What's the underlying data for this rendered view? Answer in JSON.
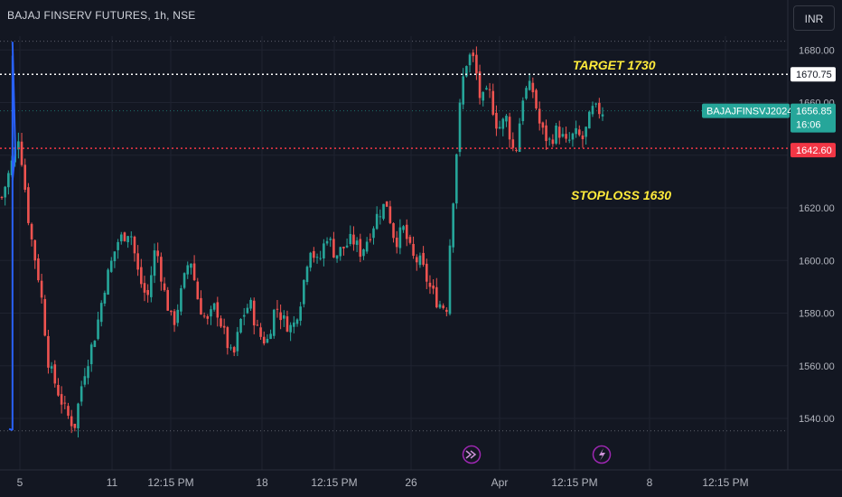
{
  "header": {
    "title": "BAJAJ FINSERV FUTURES, 1h, NSE",
    "currency": "INR"
  },
  "colors": {
    "background": "#131722",
    "grid": "#1f2330",
    "up": "#26a69a",
    "down": "#ef5350",
    "trendline": "#2962ff",
    "annotation_text": "#ffeb3b",
    "price_label_green": "#26a69a",
    "price_label_red": "#f23645"
  },
  "chart_data": {
    "type": "candlestick",
    "title": "BAJAJ FINSERV FUTURES, 1h, NSE",
    "ylim": [
      1532,
      1690
    ],
    "y_ticks": [
      1540,
      1560,
      1580,
      1600,
      1620,
      1640,
      1660,
      1680
    ],
    "y_tick_labels": [
      "1540.00",
      "1560.00",
      "1580.00",
      "1600.00",
      "1620.00",
      "1640.00",
      "1660.00",
      "1680.00"
    ],
    "x_tick_labels": [
      "5",
      "11",
      "12:15 PM",
      "18",
      "12:15 PM",
      "26",
      "Apr",
      "12:15 PM",
      "8",
      "12:15 PM"
    ],
    "candle_count": 182,
    "horizontal_levels": [
      {
        "price": 1670.75,
        "label": "1670.75",
        "style": "white-dotted"
      },
      {
        "price": 1642.6,
        "label": "1642.60",
        "style": "red-dotted"
      }
    ],
    "last_price": {
      "symbol": "BAJAJFINSVJ2024",
      "price": "1656.85",
      "countdown": "16:06"
    },
    "annotations": [
      "TARGET 1730",
      "STOPLOSS 1630"
    ],
    "event_icons": [
      "fast-forward",
      "lightning"
    ],
    "grid": true,
    "segments": [
      {
        "start": [
          3.4,
          1536.0
        ],
        "end": [
          5.0,
          1535.5
        ],
        "pos": [
          [
            41.7,
            1532
          ],
          [
            92.3,
            1670
          ]
        ]
      },
      {
        "start": [
          5.0,
          1535.5
        ],
        "end": [
          5.0,
          1677.8
        ],
        "pos": [
          [
            92.3,
            1670
          ],
          [
            92.3,
            1690
          ]
        ]
      },
      {
        "start": [
          5.0,
          1683.1
        ],
        "end": [
          6.3,
          1642.1
        ],
        "pos": [
          [
            92.3,
            1670
          ],
          [
            5.0,
            1535.5
          ]
        ]
      },
      {
        "start": [
          5.0,
          1630.5
        ],
        "end": [
          6.3,
          1642.1
        ],
        "pos": [
          [
            5.0,
            1535.5
          ],
          [
            5.0,
            1677.8
          ]
        ]
      }
    ]
  }
}
